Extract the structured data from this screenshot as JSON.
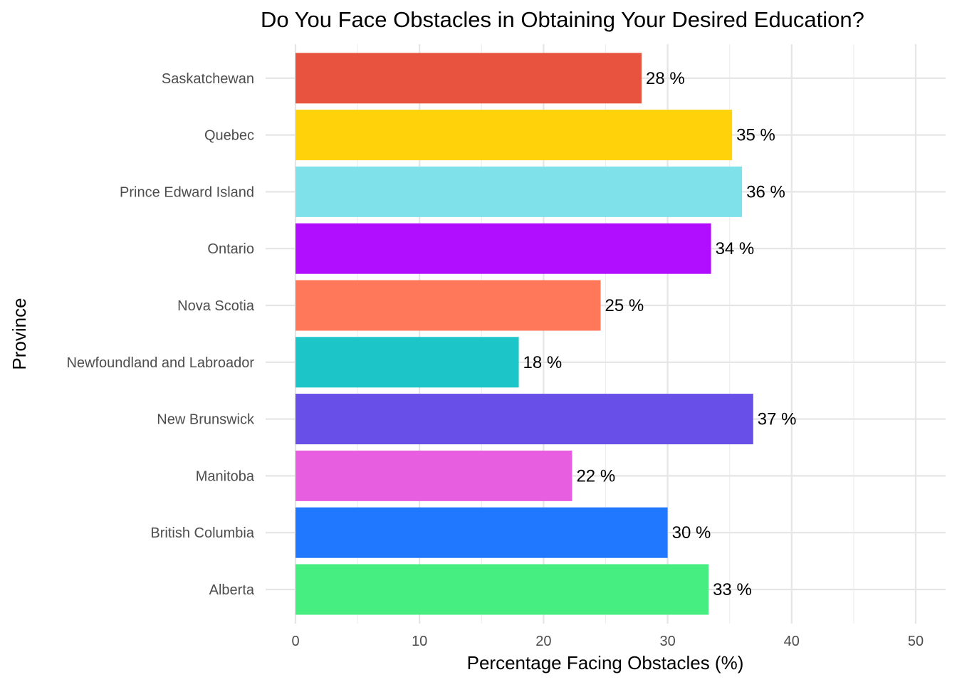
{
  "chart_data": {
    "type": "bar",
    "orientation": "horizontal",
    "title": "Do You Face Obstacles in Obtaining Your Desired Education?",
    "xlabel": "Percentage Facing Obstacles (%)",
    "ylabel": "Province",
    "xlim": [
      0,
      50
    ],
    "x_ticks": [
      "0",
      "10",
      "20",
      "30",
      "40",
      "50"
    ],
    "grid": true,
    "legend": "none",
    "label_suffix": " %",
    "categories": [
      "Alberta",
      "British Columbia",
      "Manitoba",
      "New Brunswick",
      "Newfoundland and Labroador",
      "Nova Scotia",
      "Ontario",
      "Prince Edward Island",
      "Quebec",
      "Saskatchewan"
    ],
    "values": [
      33.3,
      30.0,
      22.3,
      36.9,
      18.0,
      24.6,
      33.5,
      36.0,
      35.2,
      27.9
    ],
    "value_labels": [
      "33 %",
      "30 %",
      "22 %",
      "37 %",
      "18 %",
      "25 %",
      "34 %",
      "36 %",
      "35 %",
      "28 %"
    ],
    "colors": [
      "#46ED80",
      "#1F78FF",
      "#E75FE0",
      "#674FE8",
      "#1CC5C8",
      "#FF7859",
      "#B10DFF",
      "#7FE1EA",
      "#FFD20A",
      "#E85340"
    ]
  }
}
